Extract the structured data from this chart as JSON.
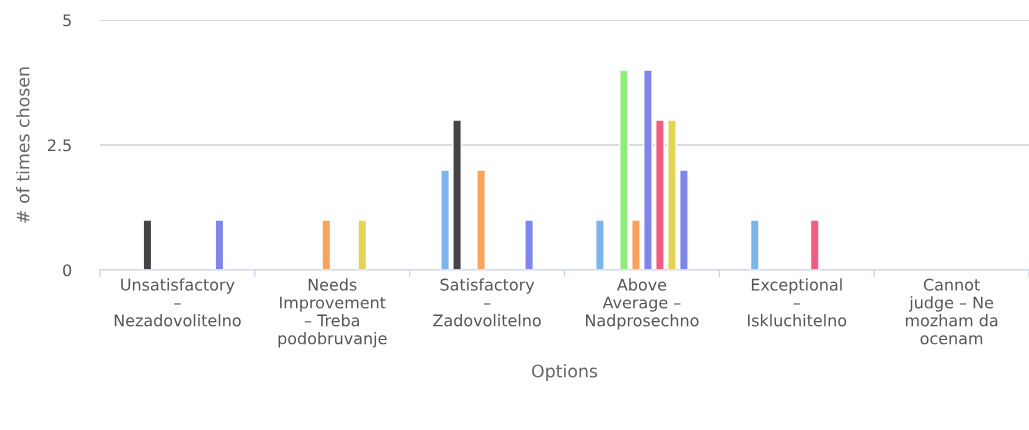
{
  "chart_data": {
    "type": "bar",
    "xlabel": "Options",
    "ylabel": "# of times chosen",
    "categories": [
      "Unsatisfactory\n–\nNezadovolitelno",
      "Needs\nImprovement\n– Treba\npodobruvanje",
      "Satisfactory\n–\nZadovolitelno",
      "Above\nAverage –\nNadprosechno",
      "Exceptional\n–\nIskluchitelno",
      "Cannot\njudge – Ne\nmozham da\nocenam"
    ],
    "series": [
      {
        "color": "#7cb5ec",
        "values": [
          null,
          null,
          2,
          1,
          1,
          null
        ]
      },
      {
        "color": "#434348",
        "values": [
          1,
          null,
          3,
          null,
          null,
          null
        ]
      },
      {
        "color": "#90ed7d",
        "values": [
          null,
          null,
          null,
          4,
          null,
          null
        ]
      },
      {
        "color": "#f7a35c",
        "values": [
          null,
          1,
          2,
          1,
          null,
          null
        ]
      },
      {
        "color": "#8085e9",
        "values": [
          null,
          null,
          null,
          4,
          null,
          null
        ]
      },
      {
        "color": "#f15c80",
        "values": [
          null,
          null,
          null,
          3,
          1,
          null
        ]
      },
      {
        "color": "#e4d354",
        "values": [
          null,
          1,
          null,
          3,
          null,
          null
        ]
      },
      {
        "color": "#8085e9",
        "values": [
          1,
          null,
          1,
          2,
          null,
          null
        ]
      }
    ],
    "ylim": [
      0,
      5
    ],
    "yticks": [
      0,
      2.5,
      5
    ],
    "grid": "y",
    "legend": false
  }
}
